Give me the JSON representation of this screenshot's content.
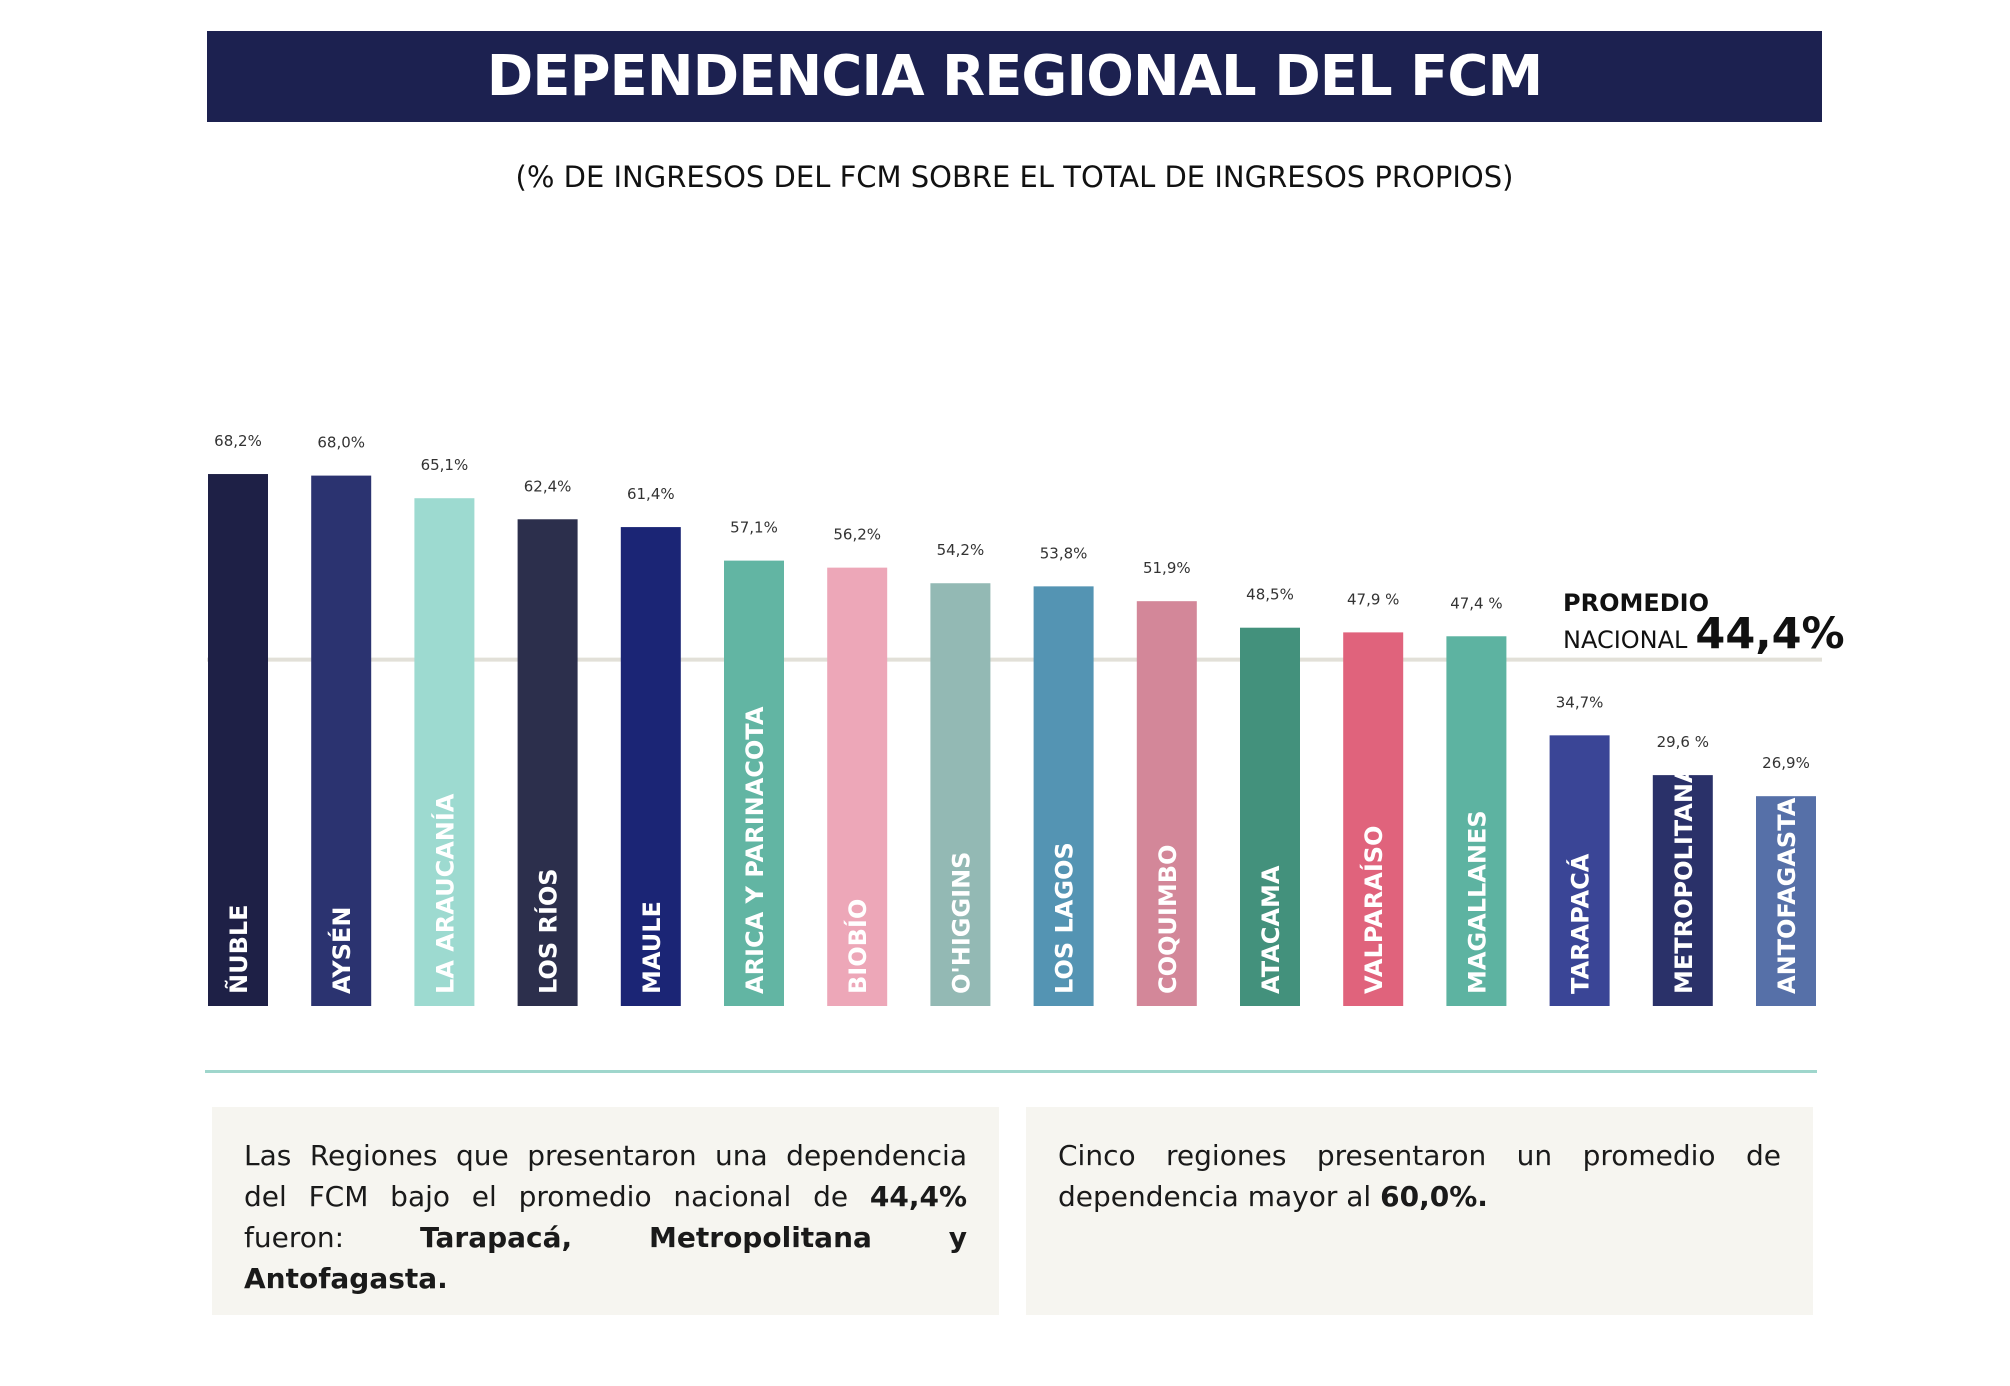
{
  "header": {
    "title": "DEPENDENCIA REGIONAL DEL FCM",
    "subtitle": "(% DE INGRESOS DEL FCM SOBRE EL TOTAL DE INGRESOS PROPIOS)"
  },
  "average": {
    "line1": "PROMEDIO",
    "line2": "NACIONAL",
    "value_label": "44,4%",
    "value": 44.4,
    "line_color": "#e2e0d8"
  },
  "chart_data": {
    "type": "bar",
    "title": "DEPENDENCIA REGIONAL DEL FCM",
    "subtitle": "(% DE INGRESOS DEL FCM SOBRE EL TOTAL DE INGRESOS PROPIOS)",
    "xlabel": "",
    "ylabel": "",
    "ylim": [
      0,
      100
    ],
    "grid": false,
    "categories": [
      "ÑUBLE",
      "AYSÉN",
      "LA ARAUCANÍA",
      "LOS RÍOS",
      "MAULE",
      "ARICA Y PARINACOTA",
      "BIOBÍO",
      "O'HIGGINS",
      "LOS LAGOS",
      "COQUIMBO",
      "ATACAMA",
      "VALPARAÍSO",
      "MAGALLANES",
      "TARAPACÁ",
      "METROPOLITANA",
      "ANTOFAGASTA"
    ],
    "values": [
      68.2,
      68.0,
      65.1,
      62.4,
      61.4,
      57.1,
      56.2,
      54.2,
      53.8,
      51.9,
      48.5,
      47.9,
      47.4,
      34.7,
      29.6,
      26.9
    ],
    "value_labels": [
      "68,2%",
      "68,0%",
      "65,1%",
      "62,4%",
      "61,4%",
      "57,1%",
      "56,2%",
      "54,2%",
      "53,8%",
      "51,9%",
      "48,5%",
      "47,9 %",
      "47,4 %",
      "34,7%",
      "29,6 %",
      "26,9%"
    ],
    "colors": [
      "#1e2046",
      "#2b3370",
      "#9ddad0",
      "#2c2f4c",
      "#1b2575",
      "#62b5a3",
      "#eda7b8",
      "#93b9b4",
      "#5494b3",
      "#d38799",
      "#43917c",
      "#e0637c",
      "#5db3a1",
      "#3a4596",
      "#2a3169",
      "#5670a8"
    ],
    "reference_line": {
      "value": 44.4,
      "label": "44,4%"
    }
  },
  "notes": {
    "left": {
      "text1": "Las Regiones que presentaron una dependencia del FCM bajo el promedio nacional de ",
      "bold1": "44,4%",
      "text2": " fueron: ",
      "bold2": "Tarapacá, Metropolitana y Antofagasta."
    },
    "right": {
      "text1": "Cinco regiones presentaron un promedio de dependencia mayor al ",
      "bold1": "60,0%."
    }
  }
}
